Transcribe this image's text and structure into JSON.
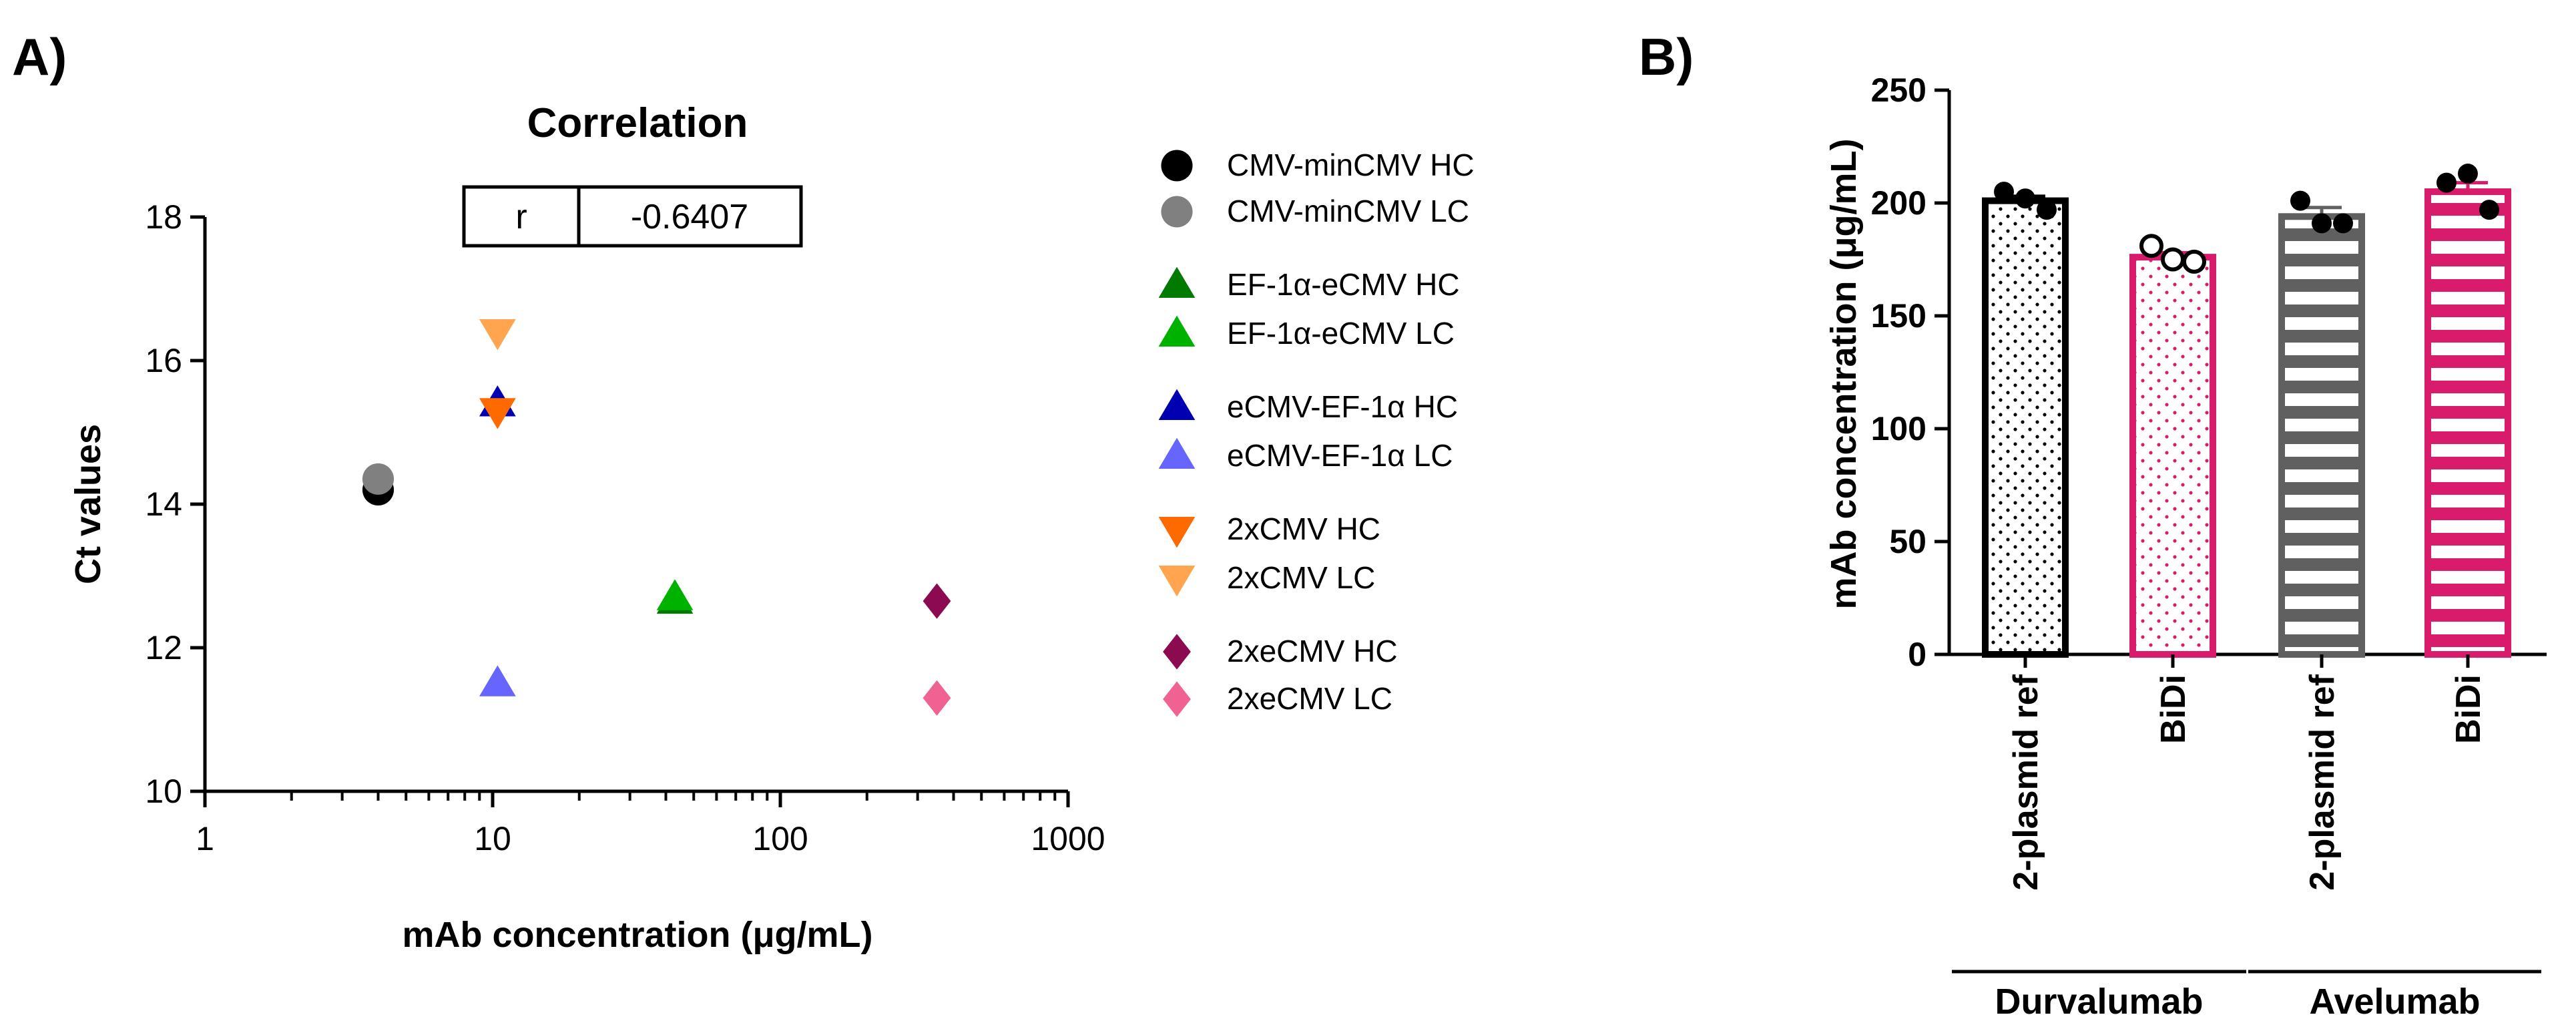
{
  "panels": {
    "a_label": "A)",
    "b_label": "B)"
  },
  "chart_data": [
    {
      "type": "scatter",
      "panel": "A)",
      "title": "Correlation",
      "xlabel": "mAb concentration (μg/mL)",
      "ylabel": "Ct values",
      "xscale": "log",
      "xlim": [
        1,
        1000
      ],
      "ylim": [
        10,
        18
      ],
      "xticks": [
        1,
        10,
        100,
        1000
      ],
      "xtick_labels": [
        "1",
        "10",
        "100",
        "1000"
      ],
      "yticks": [
        10,
        12,
        14,
        16,
        18
      ],
      "ytick_labels": [
        "10",
        "12",
        "14",
        "16",
        "18"
      ],
      "correlation": {
        "label": "r",
        "value": "-0.6407"
      },
      "legend_placement": "right",
      "series": [
        {
          "name": "CMV-minCMV HC",
          "marker": "circle",
          "color": "#000000",
          "points": [
            [
              4.0,
              14.2
            ]
          ]
        },
        {
          "name": "CMV-minCMV LC",
          "marker": "circle",
          "color": "#808080",
          "points": [
            [
              4.0,
              14.35
            ]
          ]
        },
        {
          "name": "EF-1α-eCMV HC",
          "marker": "triangle-up",
          "color": "#007A00",
          "points": [
            [
              43,
              12.65
            ]
          ]
        },
        {
          "name": "EF-1α-eCMV LC",
          "marker": "triangle-up",
          "color": "#00B200",
          "points": [
            [
              43,
              12.7
            ]
          ]
        },
        {
          "name": "eCMV-EF-1α HC",
          "marker": "triangle-up",
          "color": "#0000B3",
          "points": [
            [
              10.4,
              15.4
            ]
          ]
        },
        {
          "name": "eCMV-EF-1α LC",
          "marker": "triangle-up",
          "color": "#6666FF",
          "points": [
            [
              10.4,
              11.5
            ]
          ]
        },
        {
          "name": "2xCMV HC",
          "marker": "triangle-down",
          "color": "#FF6A00",
          "points": [
            [
              10.4,
              15.3
            ]
          ]
        },
        {
          "name": "2xCMV LC",
          "marker": "triangle-down",
          "color": "#FFA54F",
          "points": [
            [
              10.4,
              16.4
            ]
          ]
        },
        {
          "name": "2xeCMV HC",
          "marker": "diamond",
          "color": "#8B0A50",
          "points": [
            [
              350,
              12.65
            ]
          ]
        },
        {
          "name": "2xeCMV LC",
          "marker": "diamond",
          "color": "#F06292",
          "points": [
            [
              350,
              11.3
            ]
          ]
        }
      ]
    },
    {
      "type": "bar",
      "panel": "B)",
      "ylabel": "mAb concentration (μg/mL)",
      "xlabel": "",
      "ylim": [
        0,
        250
      ],
      "yticks": [
        0,
        50,
        100,
        150,
        200,
        250
      ],
      "ytick_labels": [
        "0",
        "50",
        "100",
        "150",
        "200",
        "250"
      ],
      "categories": [
        "2-plasmid ref",
        "BiDi",
        "2-plasmid ref",
        "BiDi"
      ],
      "groups": [
        {
          "label": "Durvalumab",
          "span": [
            0,
            1
          ]
        },
        {
          "label": "Avelumab",
          "span": [
            2,
            3
          ]
        }
      ],
      "bars": [
        {
          "category": "2-plasmid ref",
          "group": "Durvalumab",
          "value": 201,
          "sem": 2,
          "color": "#000000",
          "fill": "dots-black",
          "points": [
            205,
            202,
            197
          ],
          "point_style": "filled"
        },
        {
          "category": "BiDi",
          "group": "Durvalumab",
          "value": 176,
          "sem": 2,
          "color": "#D81B6A",
          "fill": "dots-pink",
          "points": [
            181,
            175,
            174
          ],
          "point_style": "open"
        },
        {
          "category": "2-plasmid ref",
          "group": "Avelumab",
          "value": 194,
          "sem": 4,
          "color": "#606060",
          "fill": "stripes-grey",
          "points": [
            201,
            191,
            191
          ],
          "point_style": "filled"
        },
        {
          "category": "BiDi",
          "group": "Avelumab",
          "value": 205,
          "sem": 4,
          "color": "#D81B6A",
          "fill": "stripes-pink",
          "points": [
            209,
            213,
            197
          ],
          "point_style": "filled"
        }
      ]
    }
  ]
}
